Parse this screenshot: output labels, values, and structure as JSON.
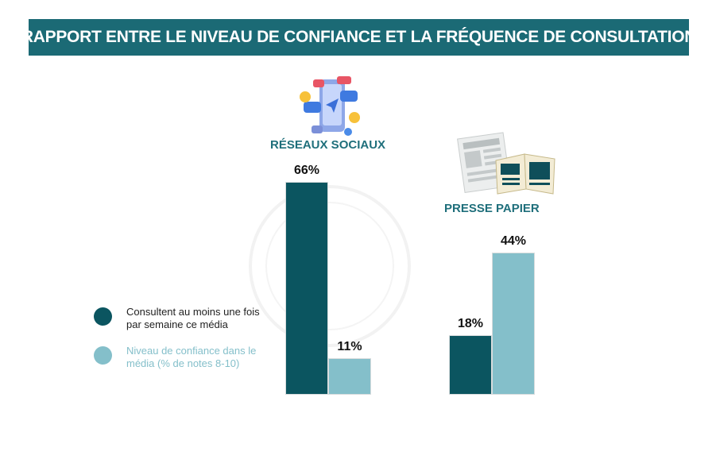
{
  "title": "RAPPORT ENTRE LE NIVEAU DE CONFIANCE ET LA FRÉQUENCE DE CONSULTATION",
  "colors": {
    "banner": "#1b6a75",
    "series_consult": "#0b5560",
    "series_trust": "#84bfca",
    "group_label": "#1f6f7b"
  },
  "icons": {
    "reseaux": "smartphone-social-media-icon",
    "presse": "newspaper-icon"
  },
  "legend": {
    "consult": "Consultent au moins une fois par semaine ce média",
    "trust": "Niveau de confiance dans le média (% de notes 8-10)"
  },
  "chart_data": {
    "type": "bar",
    "categories": [
      "RÉSEAUX SOCIAUX",
      "PRESSE PAPIER"
    ],
    "series": [
      {
        "name": "Consultent au moins une fois par semaine ce média",
        "values": [
          66,
          18
        ],
        "labels": [
          "66%",
          "18%"
        ]
      },
      {
        "name": "Niveau de confiance dans le média (% de notes 8-10)",
        "values": [
          11,
          44
        ],
        "labels": [
          "11%",
          "44%"
        ]
      }
    ],
    "unit": "%",
    "ylim": [
      0,
      70
    ],
    "grid": false,
    "legend_position": "left"
  }
}
